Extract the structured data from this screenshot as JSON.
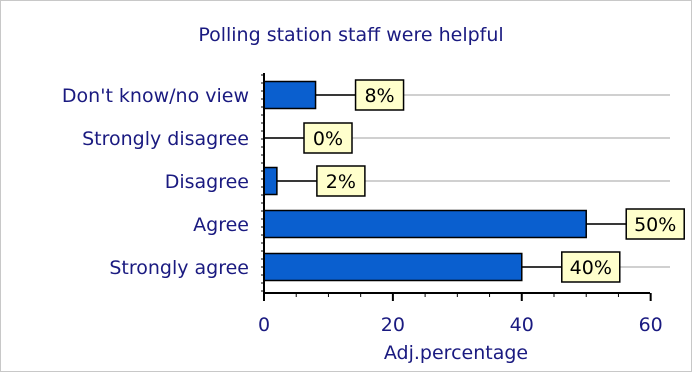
{
  "chart_data": {
    "type": "bar",
    "orientation": "horizontal",
    "title": "Polling station staff were helpful",
    "xlabel": "Adj.percentage",
    "ylabel": "",
    "categories": [
      "Don't know/no view",
      "Strongly disagree",
      "Disagree",
      "Agree",
      "Strongly agree"
    ],
    "values": [
      8,
      0,
      2,
      50,
      40
    ],
    "value_labels": [
      "8%",
      "0%",
      "2%",
      "50%",
      "40%"
    ],
    "xlim": [
      0,
      63
    ],
    "xticks": [
      0,
      20,
      40,
      60
    ],
    "grid": true,
    "legend": "none",
    "colors": {
      "bar": "#0a5fcf",
      "text": "#1a1a80",
      "label_box": "#ffffcc",
      "grid": "#c0c0c0"
    }
  }
}
